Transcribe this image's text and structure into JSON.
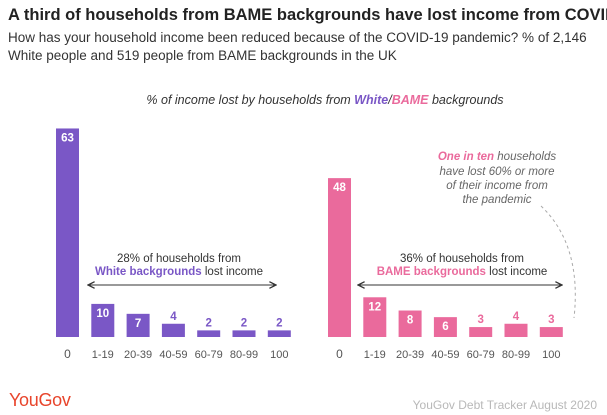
{
  "title": "A third of households from BAME backgrounds have lost income from COVID",
  "subtitle": "How has your household income been reduced because of the COVID-19 pandemic? % of 2,146 White people and 519 people from BAME backgrounds in the UK",
  "legend_heading": {
    "prefix": "% of income lost by households from ",
    "white": "White",
    "slash": "/",
    "bame": "BAME",
    "suffix": " backgrounds"
  },
  "colors": {
    "white": "#7a57c6",
    "bame": "#ea6a9c",
    "text": "#555555"
  },
  "chart_data": [
    {
      "type": "bar",
      "series_name": "White",
      "categories": [
        "0",
        "1-19",
        "20-39",
        "40-59",
        "60-79",
        "80-99",
        "100"
      ],
      "values": [
        63,
        10,
        7,
        4,
        2,
        2,
        2
      ],
      "annotation": {
        "line1": "28% of households from",
        "bold": "White backgrounds",
        "rest": " lost income"
      }
    },
    {
      "type": "bar",
      "series_name": "BAME",
      "categories": [
        "0",
        "1-19",
        "20-39",
        "40-59",
        "60-79",
        "80-99",
        "100"
      ],
      "values": [
        48,
        12,
        8,
        6,
        3,
        4,
        3
      ],
      "annotation": {
        "line1": "36% of households from",
        "bold": "BAME backgrounds",
        "rest": " lost income"
      },
      "callout": {
        "bold": "One in ten",
        "line1_rest": " households",
        "line2": "have lost 60% or more",
        "line3": "of their income from",
        "line4": "the pandemic"
      }
    }
  ],
  "brand": "YouGov",
  "source": "YouGov Debt Tracker August 2020"
}
